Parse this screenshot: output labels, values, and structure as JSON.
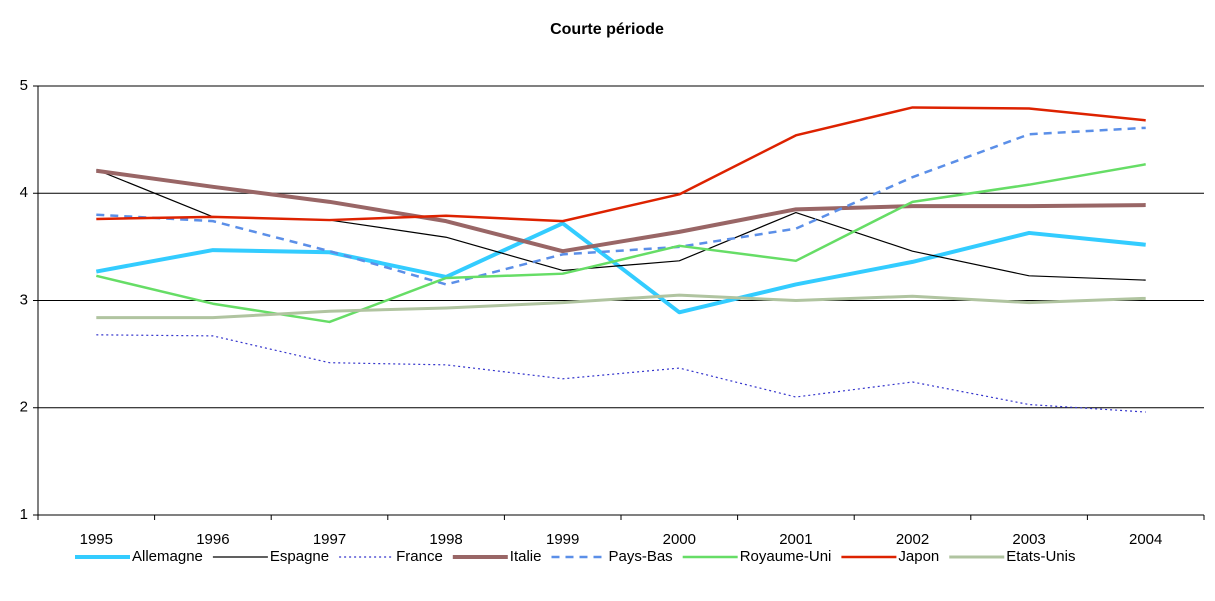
{
  "chart_data": {
    "type": "line",
    "title": "Courte période",
    "categories": [
      "1995",
      "1996",
      "1997",
      "1998",
      "1999",
      "2000",
      "2001",
      "2002",
      "2003",
      "2004"
    ],
    "ylim": [
      1,
      5
    ],
    "yticks": [
      1,
      2,
      3,
      4,
      5
    ],
    "grid": true,
    "legend": "bottom",
    "series": [
      {
        "name": "Allemagne",
        "color": "#33ccff",
        "width": 4,
        "dash": "none",
        "values": [
          3.27,
          3.47,
          3.45,
          3.22,
          3.72,
          2.89,
          3.15,
          3.36,
          3.63,
          3.52
        ]
      },
      {
        "name": "Espagne",
        "color": "#000000",
        "width": 1.2,
        "dash": "none",
        "values": [
          4.22,
          3.78,
          3.75,
          3.59,
          3.28,
          3.37,
          3.82,
          3.46,
          3.23,
          3.19
        ]
      },
      {
        "name": "France",
        "color": "#3333cc",
        "width": 1.2,
        "dash": "2 3",
        "values": [
          2.68,
          2.67,
          2.42,
          2.4,
          2.27,
          2.37,
          2.1,
          2.24,
          2.03,
          1.96
        ]
      },
      {
        "name": "Italie",
        "color": "#996666",
        "width": 4,
        "dash": "none",
        "values": [
          4.21,
          4.06,
          3.92,
          3.74,
          3.46,
          3.64,
          3.85,
          3.88,
          3.88,
          3.89
        ]
      },
      {
        "name": "Pays-Bas",
        "color": "#5b8fe8",
        "width": 2.5,
        "dash": "8 6",
        "values": [
          3.8,
          3.74,
          3.46,
          3.15,
          3.43,
          3.5,
          3.67,
          4.15,
          4.55,
          4.61
        ]
      },
      {
        "name": "Royaume-Uni",
        "color": "#66dd66",
        "width": 2.5,
        "dash": "none",
        "values": [
          3.23,
          2.97,
          2.8,
          3.21,
          3.25,
          3.51,
          3.37,
          3.92,
          4.08,
          4.27
        ]
      },
      {
        "name": "Japon",
        "color": "#dd2200",
        "width": 2.5,
        "dash": "none",
        "values": [
          3.76,
          3.78,
          3.75,
          3.79,
          3.74,
          3.99,
          4.54,
          4.8,
          4.79,
          4.68
        ]
      },
      {
        "name": "Etats-Unis",
        "color": "#b0c4a0",
        "width": 3,
        "dash": "none",
        "values": [
          2.84,
          2.84,
          2.9,
          2.93,
          2.98,
          3.05,
          3.0,
          3.04,
          2.98,
          3.02
        ]
      }
    ]
  }
}
